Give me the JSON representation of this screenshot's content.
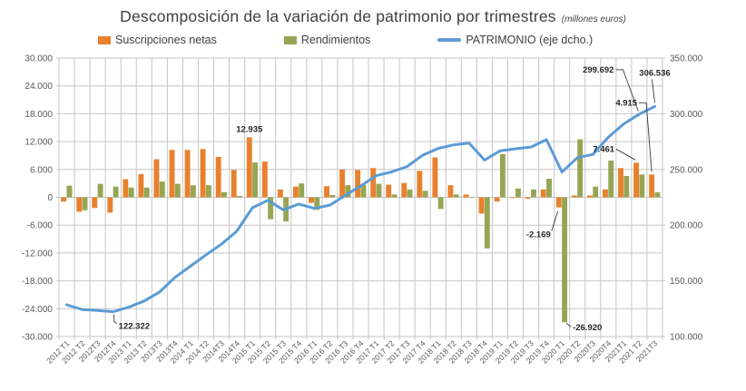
{
  "title": {
    "text": "Descomposición de la variación de patrimonio por trimestres",
    "suffix": "(millones euros)"
  },
  "legend": [
    {
      "label": "Suscripciones netas",
      "color": "#e8812d",
      "kind": "bar"
    },
    {
      "label": "Rendimientos",
      "color": "#95a553",
      "kind": "bar"
    },
    {
      "label": "PATRIMONIO (eje dcho.)",
      "color": "#5b9bd5",
      "kind": "line"
    }
  ],
  "chart_data": {
    "type": "bar+line",
    "categories": [
      "2012 T1",
      "2012 T2",
      "2012T3",
      "2012T4",
      "2013 T1",
      "2013 T2",
      "2013T3",
      "2013T4",
      "2014 T1",
      "2014 T2",
      "2014T3",
      "2014T4",
      "2015 T1",
      "2015 T2",
      "2015 T3",
      "2015 T4",
      "2016 T1",
      "2016 T2",
      "2016 T3",
      "2016 T4",
      "2017 T1",
      "2017 T2",
      "2017 T3",
      "2017 T4",
      "2018 T1",
      "2018 T2",
      "2018 T3",
      "2018 T4",
      "2019 T1",
      "2019 T2",
      "2019 T3",
      "2019 T4",
      "2020 T1",
      "2020 T2",
      "2020T3",
      "2020T4",
      "2021T1",
      "2021 T2",
      "2021T3"
    ],
    "series": [
      {
        "name": "Suscripciones netas",
        "type": "bar",
        "axis": "left",
        "color": "#e8812d",
        "values": [
          -900,
          -3100,
          -2300,
          -3300,
          3900,
          5000,
          8200,
          10200,
          10200,
          10400,
          8700,
          5900,
          12935,
          7700,
          1700,
          2300,
          -1200,
          2400,
          6000,
          5900,
          6300,
          2700,
          3100,
          5700,
          8600,
          2600,
          600,
          -3500,
          -900,
          -150,
          -300,
          1700,
          -2169,
          400,
          400,
          1700,
          6300,
          7461,
          4915
        ]
      },
      {
        "name": "Rendimientos",
        "type": "bar",
        "axis": "left",
        "color": "#95a553",
        "values": [
          2500,
          -2800,
          2900,
          2300,
          2100,
          2100,
          3400,
          2900,
          2600,
          2600,
          1100,
          300,
          7500,
          -4700,
          -5200,
          3000,
          -2700,
          500,
          2600,
          2700,
          2900,
          600,
          1700,
          1400,
          -2500,
          600,
          100,
          -11000,
          9300,
          1900,
          1700,
          4000,
          -26920,
          12500,
          2300,
          7900,
          4600,
          4900,
          1100
        ]
      },
      {
        "name": "PATRIMONIO (eje dcho.)",
        "type": "line",
        "axis": "right",
        "color": "#5b9bd5",
        "values": [
          128500,
          124300,
          123400,
          122322,
          126400,
          131900,
          140000,
          153200,
          163200,
          173400,
          182900,
          194800,
          215600,
          222300,
          213700,
          219000,
          215100,
          218000,
          226600,
          235300,
          244500,
          247800,
          252700,
          262800,
          268900,
          272100,
          273700,
          258400,
          266800,
          268600,
          270100,
          276800,
          247700,
          260600,
          263500,
          279000,
          291000,
          299692,
          306536
        ]
      }
    ],
    "left_axis": {
      "min": -30000,
      "max": 30000,
      "step": 6000,
      "tick_labels": [
        "30.000",
        "24.000",
        "18.000",
        "12.000",
        "6.000",
        "0",
        "-6.000",
        "-12.000",
        "-18.000",
        "-24.000",
        "-30.000"
      ]
    },
    "right_axis": {
      "min": 100000,
      "max": 350000,
      "step": 50000,
      "tick_labels": [
        "350.000",
        "300.000",
        "250.000",
        "200.000",
        "150.000",
        "100.000"
      ]
    },
    "grid": true,
    "legend_position": "top",
    "annotations": [
      {
        "text": "12.935",
        "series": 0,
        "index": 12,
        "placement": "above-bar"
      },
      {
        "text": "122.322",
        "series": 2,
        "index": 3,
        "placement": "below-line"
      },
      {
        "text": "-2.169",
        "series": 0,
        "index": 32,
        "placement": "left-below"
      },
      {
        "text": "-26.920",
        "series": 1,
        "index": 32,
        "placement": "right-of-bottom"
      },
      {
        "text": "299.692",
        "series": 2,
        "index": 37,
        "placement": "top-left"
      },
      {
        "text": "306.536",
        "series": 2,
        "index": 38,
        "placement": "top-right"
      },
      {
        "text": "4.915",
        "series": 0,
        "index": 38,
        "placement": "upper-left"
      },
      {
        "text": "7.461",
        "series": 0,
        "index": 37,
        "placement": "left-of-top"
      }
    ]
  }
}
